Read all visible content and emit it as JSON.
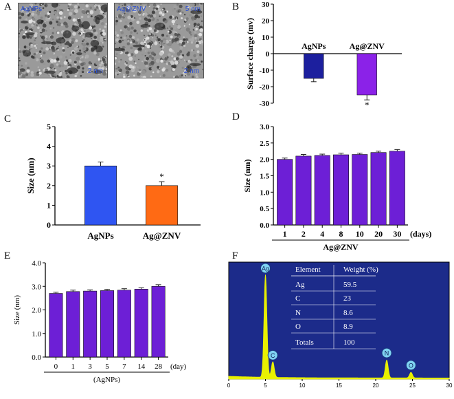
{
  "panels": {
    "a": {
      "letter": "A",
      "images": [
        {
          "label": "AgNPs",
          "scale": "2 nm"
        },
        {
          "label": "Ag@ZNV",
          "scale": "2 nm",
          "extra": "5 nm"
        }
      ]
    },
    "b": {
      "letter": "B"
    },
    "c": {
      "letter": "C"
    },
    "d": {
      "letter": "D"
    },
    "e": {
      "letter": "E"
    },
    "f": {
      "letter": "F"
    }
  },
  "colors": {
    "agnps_blue": "#1c1f9e",
    "agznv_purple": "#8b22e8",
    "c_blue": "#2f55f2",
    "c_orange": "#ff6a14",
    "bar_violet": "#6d1fd6",
    "edx_bg": "#1c2b8a",
    "edx_peak": "#e8f000",
    "edx_marker": "#7fd3f2"
  },
  "chart_data": [
    {
      "panel": "B",
      "type": "bar",
      "categories": [
        "AgNPs",
        "Ag@ZNV"
      ],
      "values": [
        -15,
        -25
      ],
      "errors": [
        2,
        3
      ],
      "significance": [
        "",
        "*"
      ],
      "ylabel": "Surface charge (mv)",
      "ylim": [
        -30,
        30
      ],
      "yticks": [
        "30",
        "20",
        "10",
        "0",
        "-10",
        "-20",
        "-30"
      ]
    },
    {
      "panel": "C",
      "type": "bar",
      "categories": [
        "AgNPs",
        "Ag@ZNV"
      ],
      "values": [
        3.0,
        2.0
      ],
      "errors": [
        0.2,
        0.2
      ],
      "significance": [
        "",
        "*"
      ],
      "ylabel": "Size  (nm)",
      "ylim": [
        0,
        5
      ],
      "yticks": [
        "5",
        "4",
        "3",
        "2",
        "1",
        "0"
      ]
    },
    {
      "panel": "D",
      "type": "bar",
      "categories": [
        "1",
        "2",
        "4",
        "8",
        "10",
        "20",
        "30"
      ],
      "values": [
        2.0,
        2.1,
        2.12,
        2.14,
        2.15,
        2.21,
        2.25
      ],
      "errors": [
        0.04,
        0.05,
        0.04,
        0.05,
        0.04,
        0.04,
        0.05
      ],
      "ylabel": "Size (nm)",
      "xlabel": "Ag@ZNV",
      "xunit": "(days)",
      "ylim": [
        0,
        3.0
      ],
      "yticks": [
        "3.0",
        "2.5",
        "2.0",
        "1.5",
        "1.0",
        "0.5",
        "0.0"
      ]
    },
    {
      "panel": "E",
      "type": "bar",
      "categories": [
        "0",
        "1",
        "3",
        "5",
        "7",
        "14",
        "28"
      ],
      "values": [
        2.7,
        2.78,
        2.8,
        2.82,
        2.84,
        2.88,
        3.0
      ],
      "errors": [
        0.05,
        0.06,
        0.05,
        0.05,
        0.06,
        0.06,
        0.07
      ],
      "ylabel": "Size (nm)",
      "xlabel": "(AgNPs)",
      "xunit": "(day)",
      "ylim": [
        0,
        4.0
      ],
      "yticks": [
        "4.0",
        "3.0",
        "2.0",
        "1.0",
        "0.0"
      ]
    },
    {
      "panel": "F",
      "type": "line",
      "xticks": [
        "0",
        "5",
        "10",
        "15",
        "20",
        "25",
        "30"
      ],
      "xlim": [
        0,
        30
      ],
      "peaks": [
        {
          "element": "Ag",
          "x": 5.0,
          "height": 0.92
        },
        {
          "element": "C",
          "x": 6.0,
          "height": 0.14
        },
        {
          "element": "N",
          "x": 21.5,
          "height": 0.16
        },
        {
          "element": "O",
          "x": 24.8,
          "height": 0.05
        }
      ],
      "table": {
        "headers": [
          "Element",
          "Weight (%)"
        ],
        "rows": [
          [
            "Ag",
            "59.5"
          ],
          [
            "C",
            "23"
          ],
          [
            "N",
            "8.6"
          ],
          [
            "O",
            "8.9"
          ],
          [
            "Totals",
            "100"
          ]
        ]
      }
    }
  ]
}
